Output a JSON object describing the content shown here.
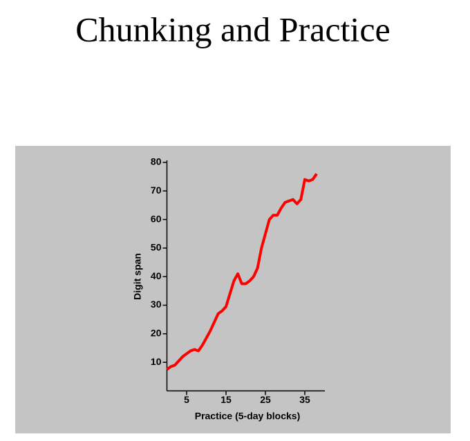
{
  "chart_data": {
    "type": "line",
    "title": "Chunking and Practice",
    "xlabel": "Practice (5-day blocks)",
    "ylabel": "Digit span",
    "x": [
      0,
      1,
      2,
      3,
      4,
      5,
      6,
      7,
      8,
      9,
      10,
      11,
      12,
      13,
      14,
      15,
      16,
      17,
      18,
      19,
      20,
      21,
      22,
      23,
      24,
      25,
      26,
      27,
      28,
      29,
      30,
      31,
      32,
      33,
      34,
      35,
      36,
      37,
      38
    ],
    "series": [
      {
        "name": "Digit span",
        "color": "#ff0000",
        "values": [
          7.5,
          8.5,
          9,
          10.5,
          12,
          13,
          14,
          14.5,
          14,
          16,
          18.5,
          21,
          24,
          27,
          28,
          29.5,
          34,
          38.5,
          41,
          37.5,
          37.5,
          38.5,
          40,
          43,
          50,
          55,
          60,
          61.5,
          61.5,
          64,
          66,
          66.5,
          67,
          65.5,
          67,
          74,
          73.5,
          74,
          76
        ]
      }
    ],
    "xlim": [
      0,
      40
    ],
    "ylim": [
      0,
      80
    ],
    "xticks": [
      5,
      15,
      25,
      35
    ],
    "yticks": [
      10,
      20,
      30,
      40,
      50,
      60,
      70,
      80
    ]
  }
}
